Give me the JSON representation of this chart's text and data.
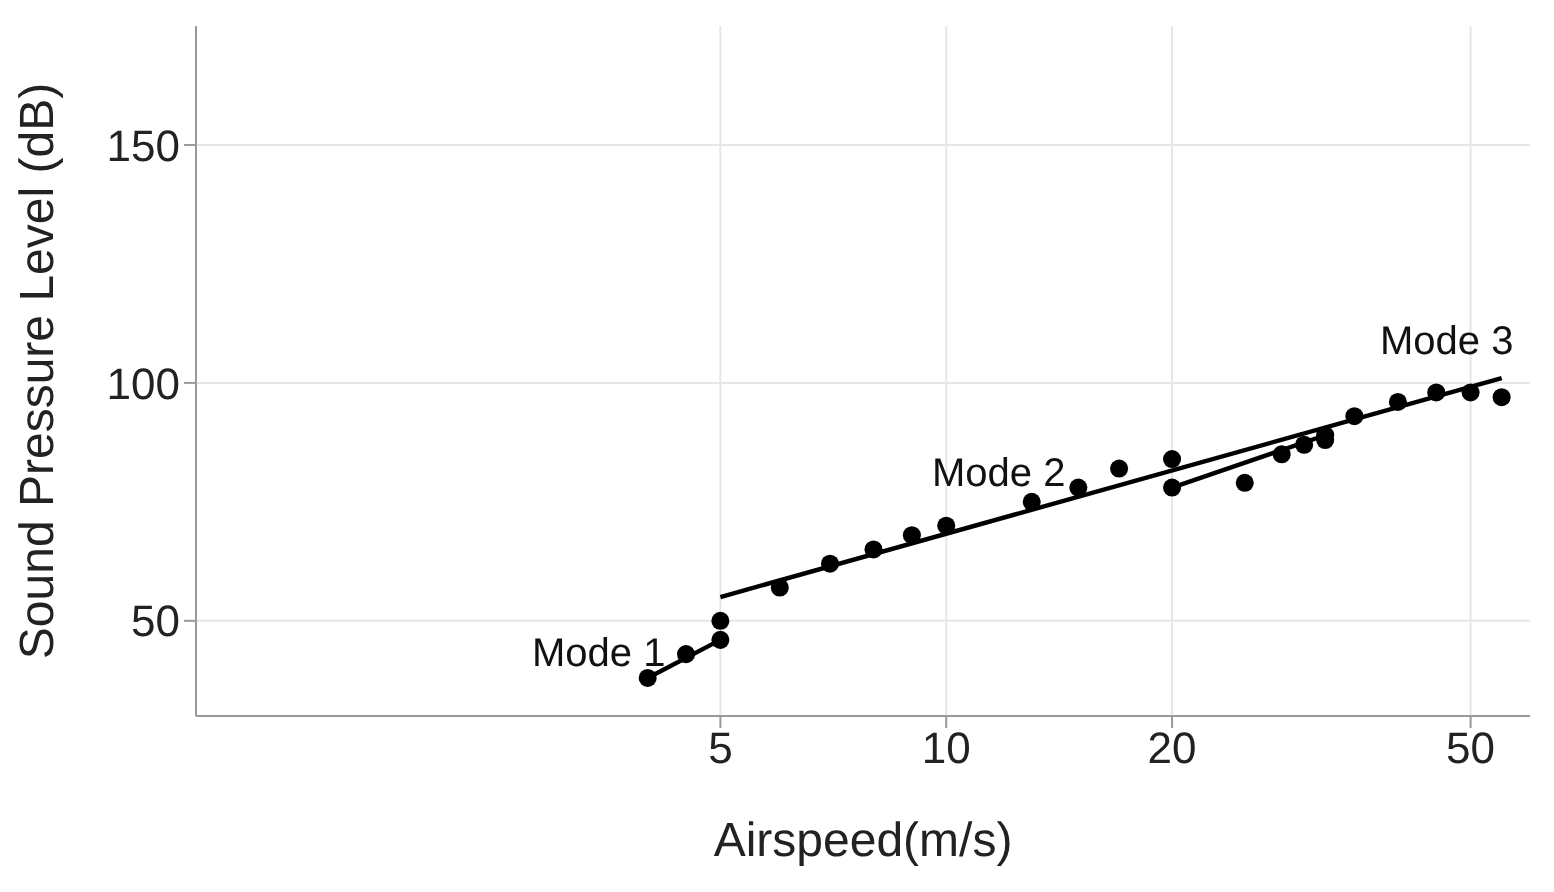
{
  "chart_data": {
    "type": "scatter",
    "xlabel": "Airspeed(m/s)",
    "ylabel": "Sound Pressure Level (dB)",
    "log": "x",
    "grid": true,
    "xlim": [
      1,
      60
    ],
    "xticks": [
      5,
      10,
      20,
      50
    ],
    "ylim": [
      30,
      175
    ],
    "yticks": [
      50,
      100,
      150
    ],
    "x": [
      4,
      4.5,
      5,
      5,
      6,
      7,
      8,
      9,
      10,
      13,
      15,
      17,
      20,
      20,
      25,
      28,
      30,
      32,
      32,
      35,
      40,
      45,
      50,
      55
    ],
    "series": [
      {
        "marker": "circle",
        "color": "#000000",
        "values": [
          38,
          43,
          46,
          50,
          57,
          62,
          65,
          68,
          70,
          75,
          78,
          82,
          84,
          78,
          79,
          85,
          87,
          88,
          89,
          93,
          96,
          98,
          98,
          97
        ]
      },
      {
        "type": "line",
        "marker": "none",
        "color": "#000000",
        "x": [
          4,
          5
        ],
        "values": [
          38,
          46
        ]
      },
      {
        "type": "line",
        "marker": "none",
        "color": "#000000",
        "x": [
          5,
          55
        ],
        "values": [
          55,
          101
        ]
      },
      {
        "type": "line",
        "marker": "none",
        "color": "#000000",
        "x": [
          20,
          32
        ],
        "values": [
          78,
          89
        ]
      }
    ],
    "annotations": [
      "Mode 1",
      "Mode 2",
      "Mode 3"
    ]
  }
}
